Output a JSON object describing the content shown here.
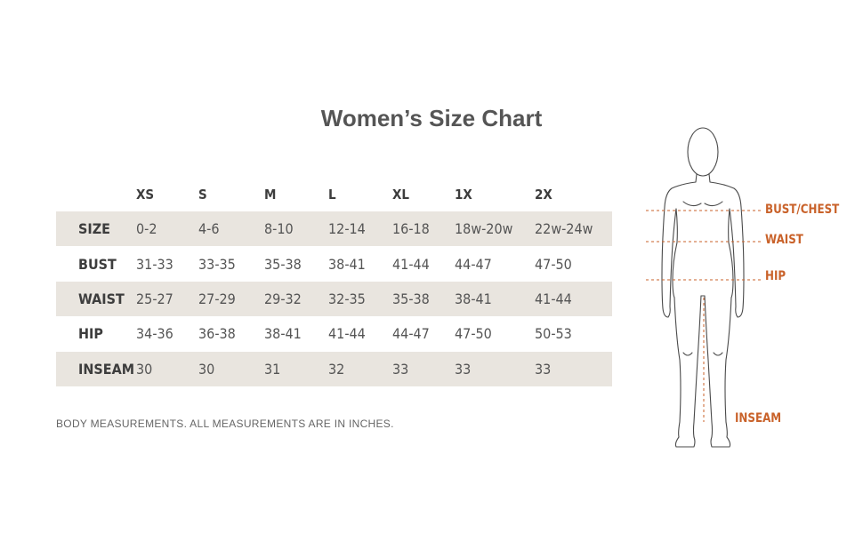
{
  "title": "Women’s Size Chart",
  "chart_data": {
    "type": "table",
    "columns": [
      "",
      "XS",
      "S",
      "M",
      "L",
      "XL",
      "1X",
      "2X"
    ],
    "rows": [
      {
        "label": "SIZE",
        "values": [
          "0-2",
          "4-6",
          "8-10",
          "12-14",
          "16-18",
          "18w-20w",
          "22w-24w"
        ]
      },
      {
        "label": "BUST",
        "values": [
          "31-33",
          "33-35",
          "35-38",
          "38-41",
          "41-44",
          "44-47",
          "47-50"
        ]
      },
      {
        "label": "WAIST",
        "values": [
          "25-27",
          "27-29",
          "29-32",
          "32-35",
          "35-38",
          "38-41",
          "41-44"
        ]
      },
      {
        "label": "HIP",
        "values": [
          "34-36",
          "36-38",
          "38-41",
          "41-44",
          "44-47",
          "47-50",
          "50-53"
        ]
      },
      {
        "label": "INSEAM",
        "values": [
          "30",
          "30",
          "31",
          "32",
          "33",
          "33",
          "33"
        ]
      }
    ]
  },
  "note": "BODY MEASUREMENTS. ALL MEASUREMENTS ARE IN INCHES.",
  "diagram_labels": {
    "bust": "BUST/CHEST",
    "waist": "WAIST",
    "hip": "HIP",
    "inseam": "INSEAM"
  },
  "colors": {
    "row_shade": "#e9e5df",
    "accent": "#c9622a",
    "text": "#555555"
  }
}
